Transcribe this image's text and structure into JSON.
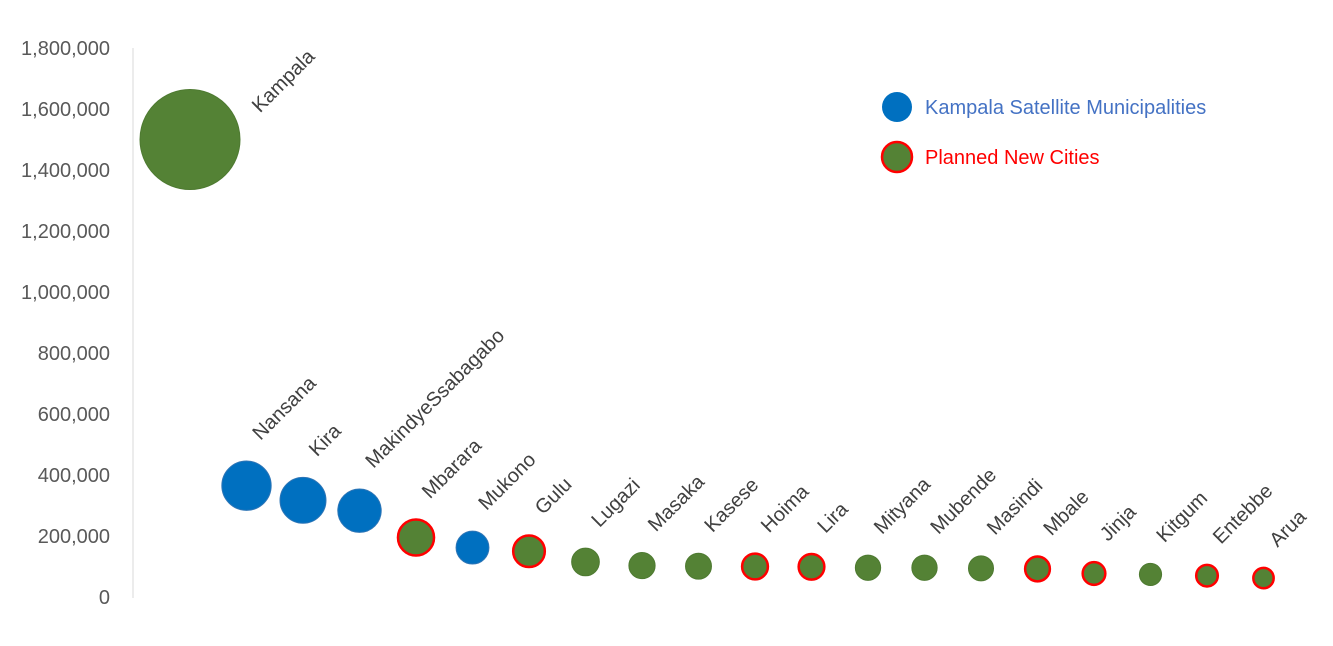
{
  "chart_data": {
    "type": "scatter",
    "title": "",
    "xlabel": "",
    "ylabel": "",
    "ylim": [
      0,
      1800000
    ],
    "yticks": [
      "0",
      "200,000",
      "400,000",
      "600,000",
      "800,000",
      "1,000,000",
      "1,200,000",
      "1,400,000",
      "1,600,000",
      "1,800,000"
    ],
    "grid": false,
    "legend_position": "top-right",
    "legend": [
      {
        "label": "Kampala Satellite Municipalities",
        "type": "satellite",
        "color": "#0070C0",
        "text_color": "#4472C4"
      },
      {
        "label": "Planned New Cities",
        "type": "planned",
        "color": "#548235",
        "border": "#FF0000",
        "text_color": "#FF0000"
      }
    ],
    "points": [
      {
        "name": "Kampala",
        "value": 1500000,
        "type": "core"
      },
      {
        "name": "Nansana",
        "value": 365000,
        "type": "satellite"
      },
      {
        "name": "Kira",
        "value": 317000,
        "type": "satellite"
      },
      {
        "name": "MakindyeSsabagabo",
        "value": 283000,
        "type": "satellite"
      },
      {
        "name": "Mbarara",
        "value": 195000,
        "type": "planned"
      },
      {
        "name": "Mukono",
        "value": 162000,
        "type": "satellite"
      },
      {
        "name": "Gulu",
        "value": 150000,
        "type": "planned"
      },
      {
        "name": "Lugazi",
        "value": 115000,
        "type": "other"
      },
      {
        "name": "Masaka",
        "value": 103000,
        "type": "other"
      },
      {
        "name": "Kasese",
        "value": 101000,
        "type": "other"
      },
      {
        "name": "Hoima",
        "value": 100000,
        "type": "planned"
      },
      {
        "name": "Lira",
        "value": 99000,
        "type": "planned"
      },
      {
        "name": "Mityana",
        "value": 96000,
        "type": "other"
      },
      {
        "name": "Mubende",
        "value": 96000,
        "type": "other"
      },
      {
        "name": "Masindi",
        "value": 94000,
        "type": "other"
      },
      {
        "name": "Mbale",
        "value": 92000,
        "type": "planned"
      },
      {
        "name": "Jinja",
        "value": 77000,
        "type": "planned"
      },
      {
        "name": "Kitgum",
        "value": 74000,
        "type": "other"
      },
      {
        "name": "Entebbe",
        "value": 70000,
        "type": "planned"
      },
      {
        "name": "Arua",
        "value": 62000,
        "type": "planned"
      }
    ]
  }
}
